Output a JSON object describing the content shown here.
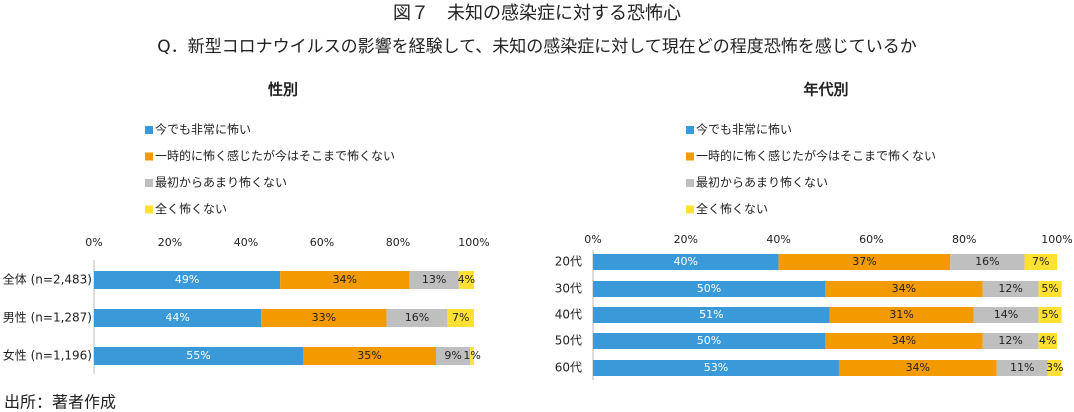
{
  "title": "図７　未知の感染症に対する恐怖心",
  "subtitle": "Q．新型コロナウイルスの影響を経験して、未知の感染症に対して現在どの程度恐怖を感じているか",
  "source": "出所：著者作成",
  "chart_data": [
    {
      "type": "bar",
      "orientation": "horizontal",
      "stacked": true,
      "title": "性別",
      "categories": [
        "全体 (n=2,483)",
        "男性 (n=1,287)",
        "女性 (n=1,196)"
      ],
      "series": [
        {
          "name": "今でも非常に怖い",
          "color": "#3a9ad9",
          "values": [
            49,
            44,
            55
          ],
          "value_labels": [
            "49%",
            "44%",
            "55%"
          ]
        },
        {
          "name": "一時的に怖く感じたが今はそこまで怖くない",
          "color": "#f39a00",
          "values": [
            34,
            33,
            35
          ],
          "value_labels": [
            "34%",
            "33%",
            "35%"
          ]
        },
        {
          "name": "最初からあまり怖くない",
          "color": "#bfbfbf",
          "values": [
            13,
            16,
            9
          ],
          "value_labels": [
            "13%",
            "16%",
            "9%"
          ]
        },
        {
          "name": "全く怖くない",
          "color": "#ffe033",
          "values": [
            4,
            7,
            1
          ],
          "value_labels": [
            "4%",
            "7%",
            "1%"
          ]
        }
      ],
      "xlim": [
        0,
        100
      ],
      "xticks": [
        {
          "value": 0,
          "label": "0%"
        },
        {
          "value": 20,
          "label": "20%"
        },
        {
          "value": 40,
          "label": "40%"
        },
        {
          "value": 60,
          "label": "60%"
        },
        {
          "value": 80,
          "label": "80%"
        },
        {
          "value": 100,
          "label": "100%"
        }
      ]
    },
    {
      "type": "bar",
      "orientation": "horizontal",
      "stacked": true,
      "title": "年代別",
      "categories": [
        "20代",
        "30代",
        "40代",
        "50代",
        "60代"
      ],
      "series": [
        {
          "name": "今でも非常に怖い",
          "color": "#3a9ad9",
          "values": [
            40,
            50,
            51,
            50,
            53
          ],
          "value_labels": [
            "40%",
            "50%",
            "51%",
            "50%",
            "53%"
          ]
        },
        {
          "name": "一時的に怖く感じたが今はそこまで怖くない",
          "color": "#f39a00",
          "values": [
            37,
            34,
            31,
            34,
            34
          ],
          "value_labels": [
            "37%",
            "34%",
            "31%",
            "34%",
            "34%"
          ]
        },
        {
          "name": "最初からあまり怖くない",
          "color": "#bfbfbf",
          "values": [
            16,
            12,
            14,
            12,
            11
          ],
          "value_labels": [
            "16%",
            "12%",
            "14%",
            "12%",
            "11%"
          ]
        },
        {
          "name": "全く怖くない",
          "color": "#ffe033",
          "values": [
            7,
            5,
            5,
            4,
            3
          ],
          "value_labels": [
            "7%",
            "5%",
            "5%",
            "4%",
            "3%"
          ]
        }
      ],
      "xlim": [
        0,
        100
      ],
      "xticks": [
        {
          "value": 0,
          "label": "0%"
        },
        {
          "value": 20,
          "label": "20%"
        },
        {
          "value": 40,
          "label": "40%"
        },
        {
          "value": 60,
          "label": "60%"
        },
        {
          "value": 80,
          "label": "80%"
        },
        {
          "value": 100,
          "label": "100%"
        }
      ]
    }
  ]
}
